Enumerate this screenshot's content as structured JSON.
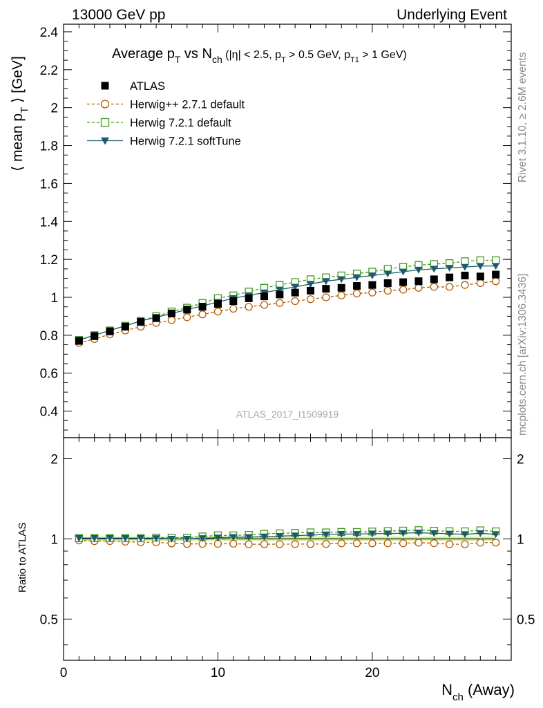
{
  "header": {
    "left": "13000 GeV pp",
    "right": "Underlying Event"
  },
  "side": {
    "rivet": "Rivet 3.1.10, ≥ 2.6M events",
    "mcplots": "mcplots.cern.ch [arXiv:1306.3436]"
  },
  "chart_data": {
    "type": "scatter",
    "title": {
      "main_a": "Average p",
      "sub_a": "T",
      "main_b": " vs N",
      "sub_b": "ch",
      "rest_a": " (|η| < 2.5, p",
      "sub_c": "T",
      "rest_b": " > 0.5 GeV, p",
      "sub_d": "T1",
      "rest_c": " > 1 GeV)"
    },
    "ylabel": {
      "a": "⟨ mean p",
      "sub": "T",
      "b": " ⟩ [GeV]"
    },
    "ratio_ylabel": "Ratio to ATLAS",
    "xlabel": {
      "a": "N",
      "sub": "ch",
      "b": " (Away)"
    },
    "watermark": "ATLAS_2017_I1509919",
    "xlim": [
      0,
      29
    ],
    "ylim": [
      0.26,
      2.44
    ],
    "ratio_ylim": [
      0.35,
      2.4
    ],
    "ratio_scale": "log",
    "x_ticks": [
      0,
      10,
      20
    ],
    "y_ticks": [
      0.4,
      0.6,
      0.8,
      1,
      1.2,
      1.4,
      1.6,
      1.8,
      2,
      2.2,
      2.4
    ],
    "y_tick_labels": [
      "0.4",
      "0.6",
      "0.8",
      "1",
      "1.2",
      "1.4",
      "1.6",
      "1.8",
      "2",
      "2.2",
      "2.4"
    ],
    "ratio_ticks": [
      0.5,
      1,
      2
    ],
    "ratio_tick_labels": [
      "0.5",
      "1",
      "2"
    ],
    "x": [
      1,
      2,
      3,
      4,
      5,
      6,
      7,
      8,
      9,
      10,
      11,
      12,
      13,
      14,
      15,
      16,
      17,
      18,
      19,
      20,
      21,
      22,
      23,
      24,
      25,
      26,
      27,
      28
    ],
    "series": [
      {
        "name": "ATLAS",
        "marker": "square-filled",
        "color": "#000000",
        "line": "none",
        "values": [
          0.77,
          0.795,
          0.82,
          0.845,
          0.87,
          0.89,
          0.915,
          0.935,
          0.95,
          0.965,
          0.98,
          0.995,
          1.005,
          1.015,
          1.025,
          1.035,
          1.045,
          1.05,
          1.06,
          1.065,
          1.075,
          1.08,
          1.085,
          1.095,
          1.105,
          1.115,
          1.11,
          1.12
        ]
      },
      {
        "name": "Herwig++ 2.7.1 default",
        "marker": "circle-open",
        "color": "#b35a00",
        "line": "dashed",
        "values": [
          0.76,
          0.78,
          0.805,
          0.825,
          0.845,
          0.865,
          0.88,
          0.895,
          0.91,
          0.925,
          0.94,
          0.95,
          0.96,
          0.97,
          0.98,
          0.99,
          1.0,
          1.01,
          1.02,
          1.025,
          1.035,
          1.04,
          1.05,
          1.055,
          1.055,
          1.065,
          1.075,
          1.085
        ]
      },
      {
        "name": "Herwig 7.2.1 default",
        "marker": "square-open",
        "color": "#3d9a1b",
        "line": "dashed",
        "values": [
          0.775,
          0.8,
          0.825,
          0.85,
          0.875,
          0.9,
          0.925,
          0.945,
          0.97,
          0.995,
          1.01,
          1.03,
          1.05,
          1.065,
          1.08,
          1.095,
          1.105,
          1.115,
          1.125,
          1.135,
          1.15,
          1.16,
          1.17,
          1.175,
          1.18,
          1.19,
          1.195,
          1.195
        ]
      },
      {
        "name": "Herwig 7.2.1 softTune",
        "marker": "triangle-down-filled",
        "color": "#1e5a6e",
        "line": "solid",
        "values": [
          0.775,
          0.8,
          0.825,
          0.85,
          0.875,
          0.895,
          0.915,
          0.935,
          0.955,
          0.975,
          0.995,
          1.01,
          1.025,
          1.04,
          1.055,
          1.07,
          1.085,
          1.095,
          1.105,
          1.115,
          1.125,
          1.135,
          1.145,
          1.15,
          1.155,
          1.16,
          1.165,
          1.165
        ]
      }
    ],
    "legend_position": "top-left"
  }
}
